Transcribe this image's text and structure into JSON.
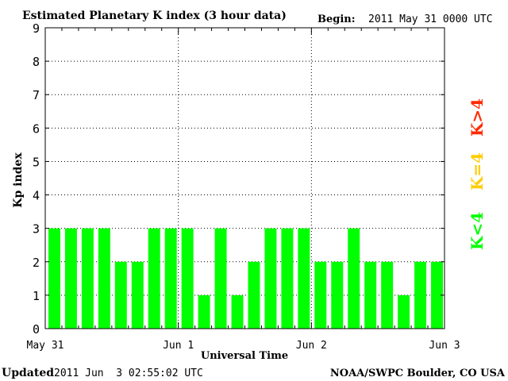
{
  "header": {
    "title": "Estimated Planetary K index (3 hour data)",
    "begin_label": "Begin:",
    "begin_value": "2011 May 31 0000 UTC"
  },
  "footer": {
    "updated_label": "Updated",
    "updated_value": "2011 Jun  3 02:55:02 UTC",
    "source": "NOAA/SWPC Boulder, CO USA"
  },
  "legend": {
    "high": "K>4",
    "equal": "K=4",
    "low": "K<4"
  },
  "colors": {
    "bar": "#00ff00",
    "high": "#ff2a00",
    "equal": "#ffcc00",
    "low": "#00ff00",
    "grid": "#000000"
  },
  "chart_data": {
    "type": "bar",
    "title": "Estimated Planetary K index (3 hour data)",
    "xlabel": "Universal Time",
    "ylabel": "Kp index",
    "ylim": [
      0,
      9
    ],
    "yticks": [
      "0",
      "1",
      "2",
      "3",
      "4",
      "5",
      "6",
      "7",
      "8",
      "9"
    ],
    "xticks": [
      "May 31",
      "Jun 1",
      "Jun 2",
      "Jun 3"
    ],
    "grid": true,
    "bins_per_day": 8,
    "days": 3,
    "values": [
      3,
      3,
      3,
      3,
      2,
      2,
      3,
      3,
      3,
      1,
      3,
      1,
      2,
      3,
      3,
      3,
      2,
      2,
      3,
      2,
      2,
      1,
      2,
      2
    ]
  }
}
